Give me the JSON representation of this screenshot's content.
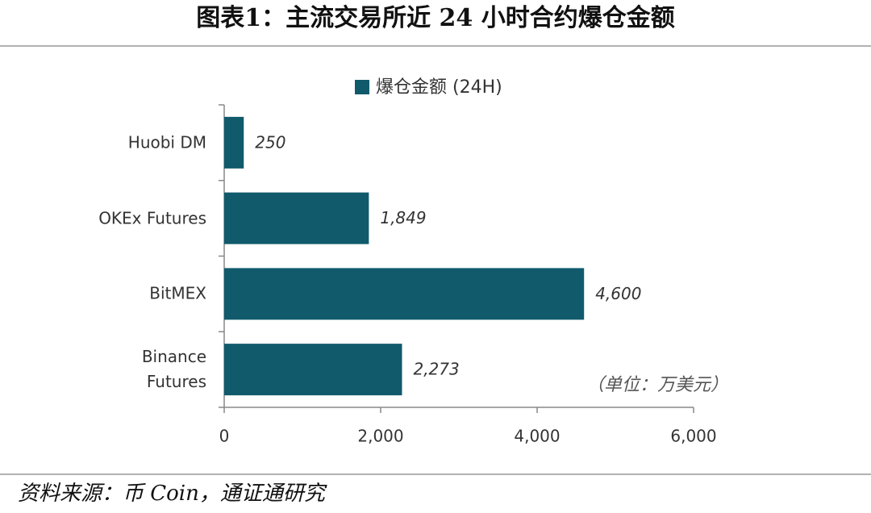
{
  "chart_data": {
    "type": "barh",
    "title": "图表1：主流交易所近 24 小时合约爆仓金额",
    "categories": [
      "Huobi DM",
      "OKEx Futures",
      "BitMEX",
      "Binance Futures"
    ],
    "series": [
      {
        "name": "爆仓金额 (24H)",
        "color": "#105a6c",
        "values": [
          250,
          1849,
          4600,
          2273
        ],
        "value_labels": [
          "250",
          "1,849",
          "4,600",
          "2,273"
        ]
      }
    ],
    "xlim": [
      0,
      6000
    ],
    "xticks": [
      0,
      {
        "value": 2000,
        "label": "2,000"
      },
      {
        "value": 4000,
        "label": "4,000"
      },
      {
        "value": 6000,
        "label": "6,000"
      }
    ],
    "annotation": "（单位：万美元）",
    "source": "资料来源：币 Coin，通证通研究"
  }
}
